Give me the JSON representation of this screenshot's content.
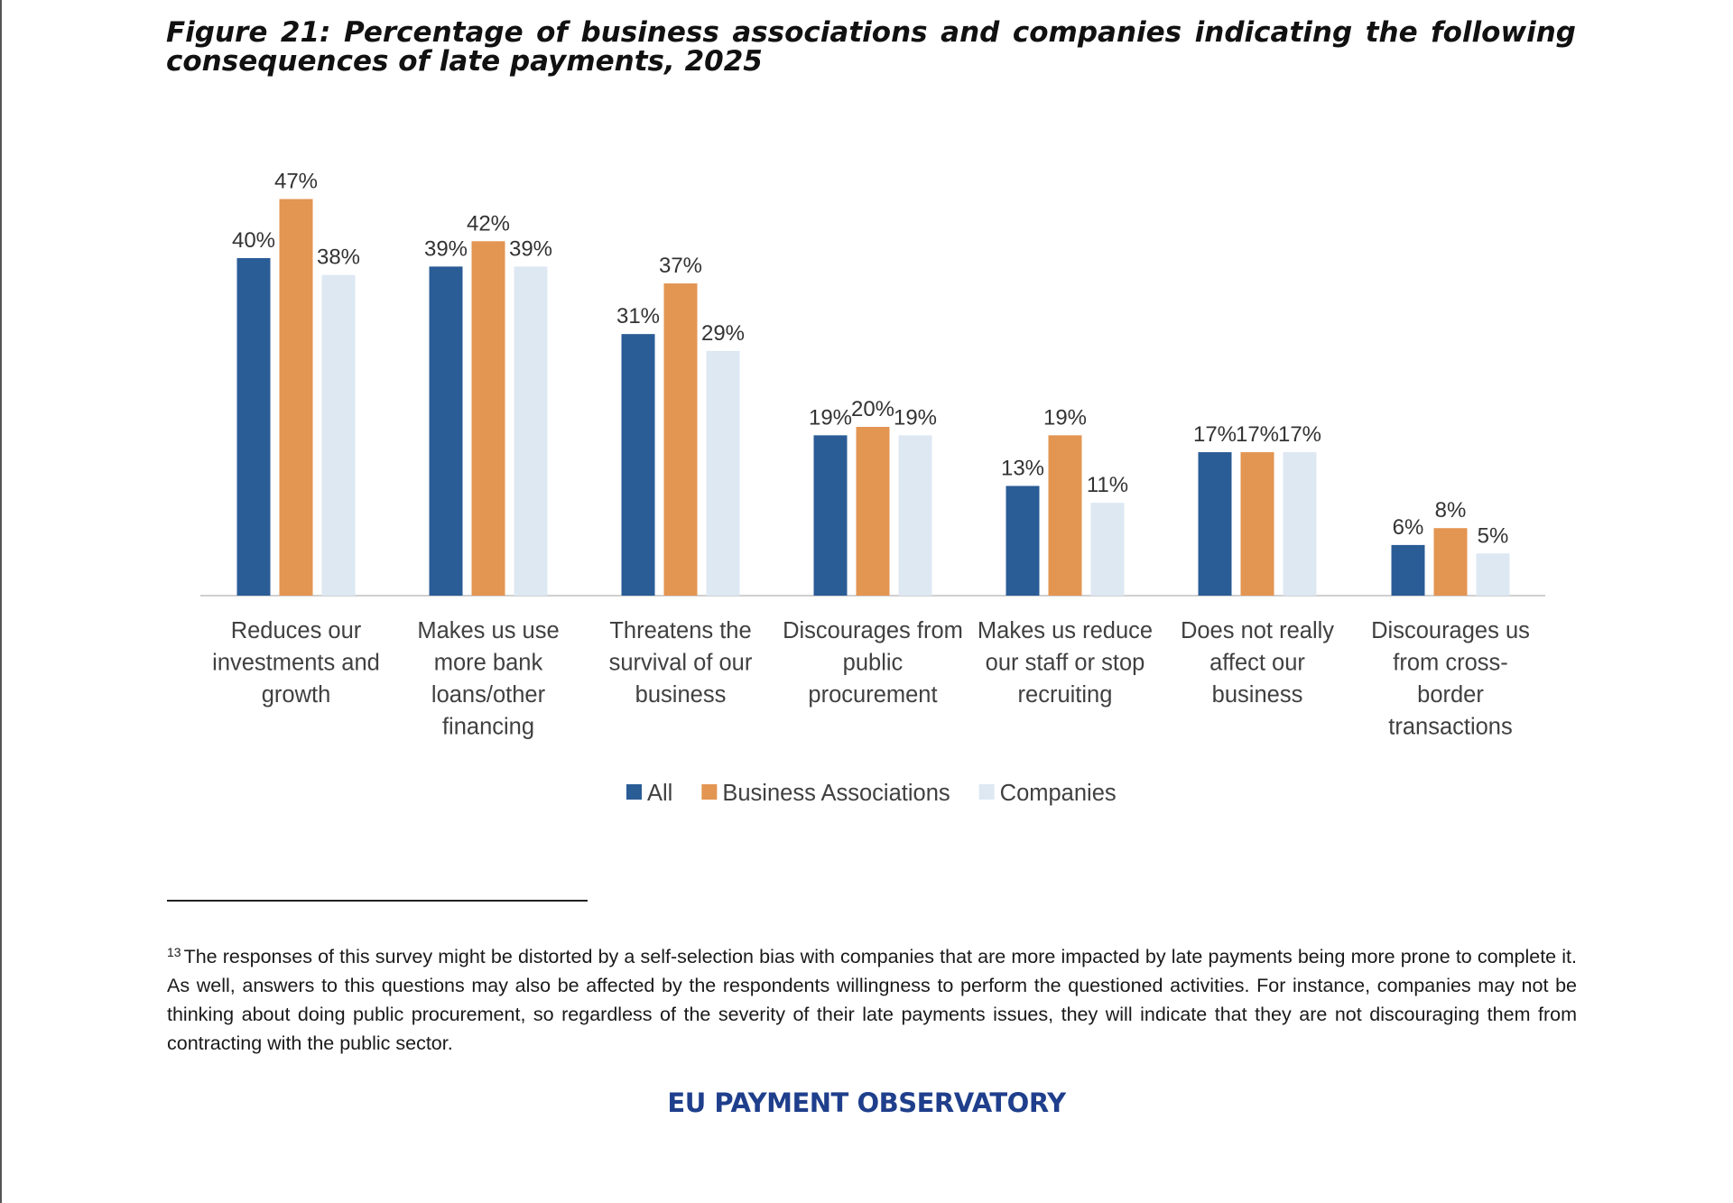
{
  "figure": {
    "title": "Figure 21: Percentage of business associations and companies indicating the following consequences of late payments, 2025"
  },
  "chart_data": {
    "type": "bar",
    "title": "Figure 21: Percentage of business associations and companies indicating the following consequences of late payments, 2025",
    "xlabel": "",
    "ylabel": "",
    "ylim": [
      0,
      50
    ],
    "grid": false,
    "legend_position": "bottom",
    "value_suffix": "%",
    "categories": [
      [
        "Reduces our",
        "investments and",
        "growth"
      ],
      [
        "Makes us use",
        "more bank",
        "loans/other",
        "financing"
      ],
      [
        "Threatens the",
        "survival of our",
        "business"
      ],
      [
        "Discourages from",
        "public",
        "procurement"
      ],
      [
        "Makes us reduce",
        "our staff or stop",
        "recruiting"
      ],
      [
        "Does not really",
        "affect our",
        "business"
      ],
      [
        "Discourages us",
        "from cross-",
        "border",
        "transactions"
      ]
    ],
    "series": [
      {
        "name": "All",
        "color": "#2a5c96",
        "values": [
          40,
          39,
          31,
          19,
          13,
          17,
          6
        ]
      },
      {
        "name": "Business Associations",
        "color": "#e39552",
        "values": [
          47,
          42,
          37,
          20,
          19,
          17,
          8
        ]
      },
      {
        "name": "Companies",
        "color": "#dde8f3",
        "values": [
          38,
          39,
          29,
          19,
          11,
          17,
          5
        ]
      }
    ]
  },
  "footnote": {
    "marker": "13",
    "text": "The responses of this survey might be distorted by a self-selection bias with companies that are more impacted by late payments being more prone to complete it. As well, answers to this questions may also be affected by the respondents willingness to perform the questioned activities. For instance, companies may not be thinking about doing public procurement, so regardless of the severity of their late payments issues, they will indicate that they are not discouraging them from contracting with the public sector."
  },
  "brand": {
    "text": "EU PAYMENT OBSERVATORY"
  }
}
